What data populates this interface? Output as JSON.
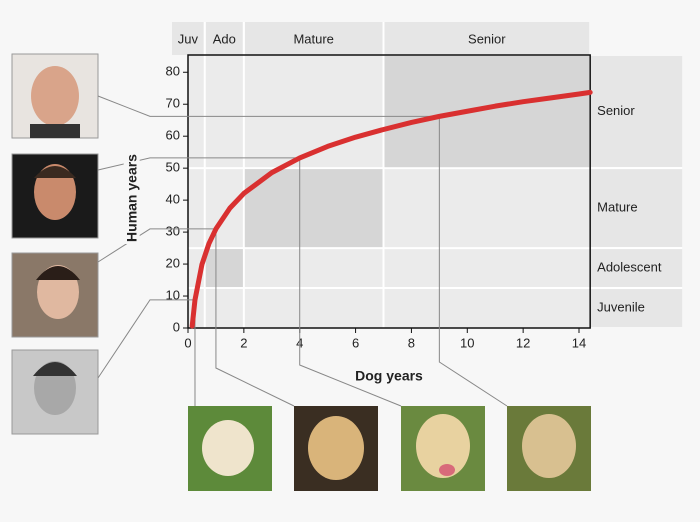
{
  "chart_data": {
    "type": "line",
    "x_label": "Dog years",
    "y_label": "Human years",
    "x": [
      0.15,
      0.25,
      0.5,
      0.75,
      1,
      1.5,
      2,
      3,
      4,
      5,
      6,
      7,
      8,
      9,
      10,
      11,
      12,
      13,
      14,
      14.4
    ],
    "series": [
      {
        "name": "Human years",
        "color": "#d93030",
        "values": [
          0.6,
          8.8,
          19.9,
          26.4,
          31,
          37.5,
          42.1,
          48.6,
          53.2,
          56.8,
          59.7,
          62.1,
          64.3,
          66.2,
          67.8,
          69.4,
          70.8,
          72.0,
          73.2,
          73.7
        ]
      }
    ],
    "xlim": [
      0,
      14.4
    ],
    "ylim": [
      0,
      85.4
    ],
    "xticks": [
      0,
      2,
      4,
      6,
      8,
      10,
      12,
      14
    ],
    "yticks": [
      0,
      10,
      20,
      30,
      40,
      50,
      60,
      70,
      80
    ],
    "dog_stages": [
      {
        "label": "Juv",
        "range": [
          0,
          0.6
        ]
      },
      {
        "label": "Ado",
        "range": [
          0.6,
          2
        ]
      },
      {
        "label": "Mature",
        "range": [
          2,
          7
        ]
      },
      {
        "label": "Senior",
        "range": [
          7,
          14.4
        ]
      }
    ],
    "human_stages": [
      {
        "label": "Senior",
        "range": [
          50,
          85.4
        ]
      },
      {
        "label": "Mature",
        "range": [
          25,
          50
        ]
      },
      {
        "label": "Adolescent",
        "range": [
          12.5,
          25
        ]
      },
      {
        "label": "Juvenile",
        "range": [
          0,
          12.5
        ]
      }
    ]
  }
}
